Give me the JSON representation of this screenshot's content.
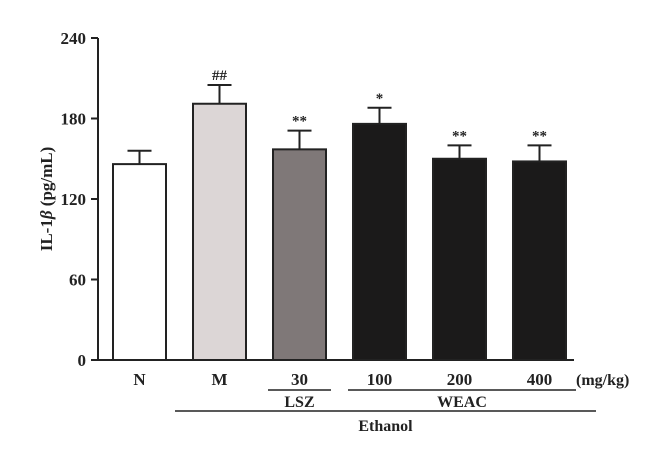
{
  "chart_data": {
    "type": "bar",
    "ylabel_main": "IL-1",
    "ylabel_beta": "β",
    "ylabel_unit": " (pg/mL)",
    "ylim": [
      0,
      240
    ],
    "yticks": [
      0,
      60,
      120,
      180,
      240
    ],
    "grid": false,
    "categories": [
      "N",
      "M",
      "30",
      "100",
      "200",
      "400"
    ],
    "values": [
      146,
      191,
      157,
      176,
      150,
      148
    ],
    "errors": [
      10,
      14,
      14,
      12,
      10,
      12
    ],
    "significance": [
      "",
      "##",
      "**",
      "*",
      "**",
      "**"
    ],
    "bar_colors": [
      "#ffffff",
      "#dcd6d6",
      "#7f7878",
      "#1b1a1a",
      "#1b1a1a",
      "#1b1a1a"
    ],
    "unit_label": "(mg/kg)",
    "group_labels": {
      "lsz": "LSZ",
      "weac": "WEAC",
      "ethanol": "Ethanol"
    }
  }
}
